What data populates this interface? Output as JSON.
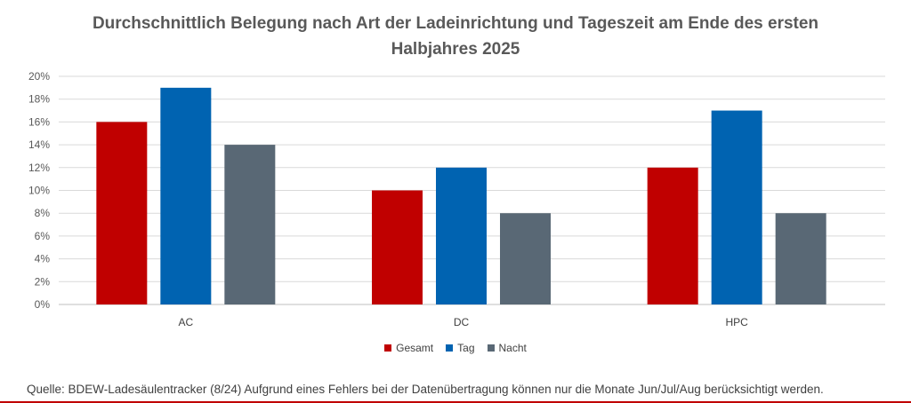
{
  "chart_data": {
    "type": "bar",
    "title_lines": [
      "Durchschnittlich Belegung nach Art der Ladeinrichtung und Tageszeit am Ende des ersten",
      "Halbjahres 2025"
    ],
    "categories": [
      "AC",
      "DC",
      "HPC"
    ],
    "series": [
      {
        "name": "Gesamt",
        "color": "#c00000",
        "values": [
          16,
          10,
          12
        ]
      },
      {
        "name": "Tag",
        "color": "#0063b1",
        "values": [
          19,
          12,
          17
        ]
      },
      {
        "name": "Nacht",
        "color": "#596875",
        "values": [
          14,
          8,
          8
        ]
      }
    ],
    "ylim": [
      0,
      20
    ],
    "yticks": [
      0,
      2,
      4,
      6,
      8,
      10,
      12,
      14,
      16,
      18,
      20
    ],
    "ytick_labels": [
      "0%",
      "2%",
      "4%",
      "6%",
      "8%",
      "10%",
      "12%",
      "14%",
      "16%",
      "18%",
      "20%"
    ],
    "grid": true,
    "legend_position": "bottom"
  },
  "source_note": "Quelle: BDEW-Ladesäulentracker (8/24) Aufgrund eines Fehlers bei der Datenübertragung können nur die Monate Jun/Jul/Aug berücksichtigt werden."
}
